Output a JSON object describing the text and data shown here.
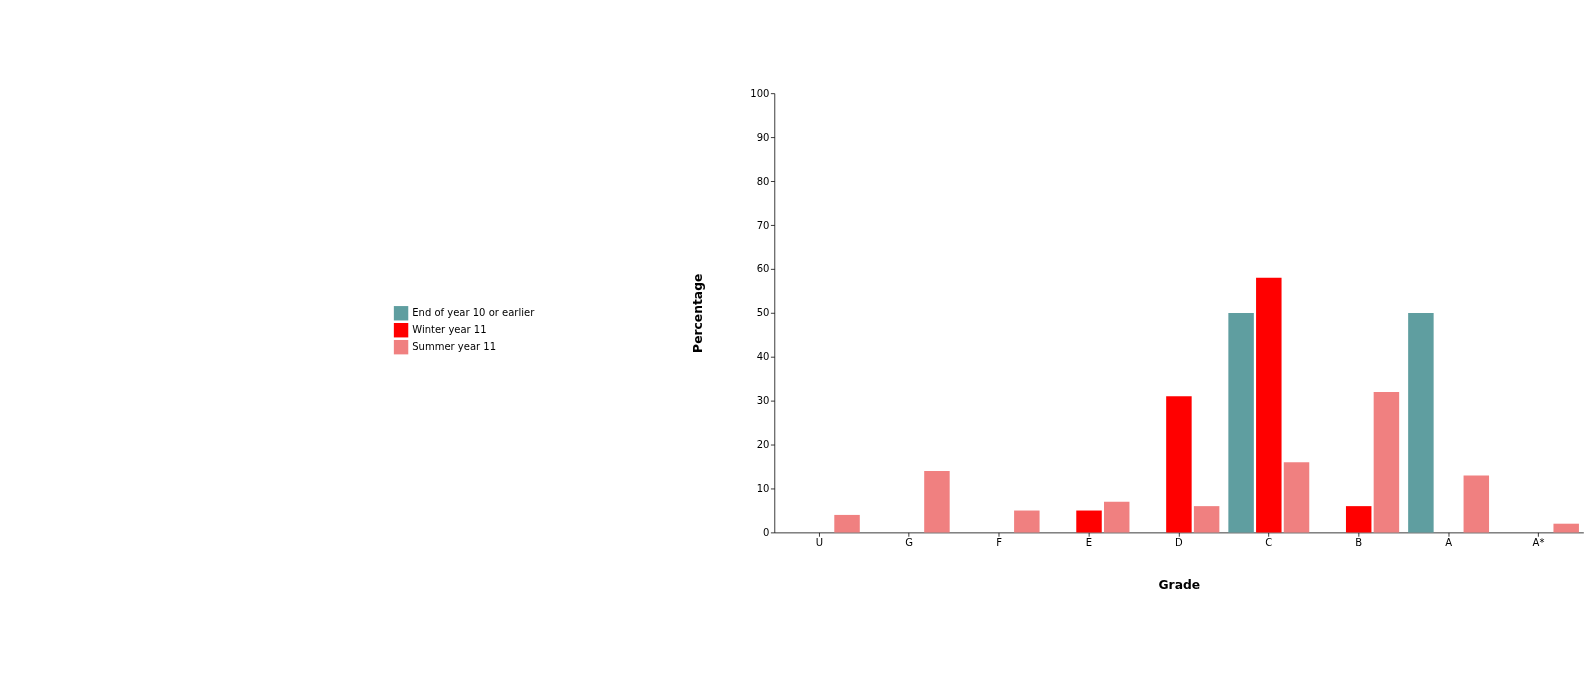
{
  "chart_data": {
    "type": "bar",
    "xlabel": "Grade",
    "ylabel": "Percentage",
    "categories": [
      "U",
      "G",
      "F",
      "E",
      "D",
      "C",
      "B",
      "A",
      "A*"
    ],
    "series": [
      {
        "name": "End of year 10 or earlier",
        "color": "#5f9ea0",
        "values": [
          0,
          0,
          0,
          0,
          0,
          50,
          0,
          50,
          0
        ]
      },
      {
        "name": "Winter year 11",
        "color": "#ff0000",
        "values": [
          0,
          0,
          0,
          5,
          31,
          58,
          6,
          0,
          0
        ]
      },
      {
        "name": "Summer year 11",
        "color": "#f08080",
        "values": [
          4,
          14,
          5,
          7,
          6,
          16,
          32,
          13,
          2
        ]
      }
    ],
    "ylim": [
      0,
      100
    ],
    "yticks": [
      0,
      10,
      20,
      30,
      40,
      50,
      60,
      70,
      80,
      90,
      100
    ],
    "grid": false,
    "legend": "left"
  }
}
